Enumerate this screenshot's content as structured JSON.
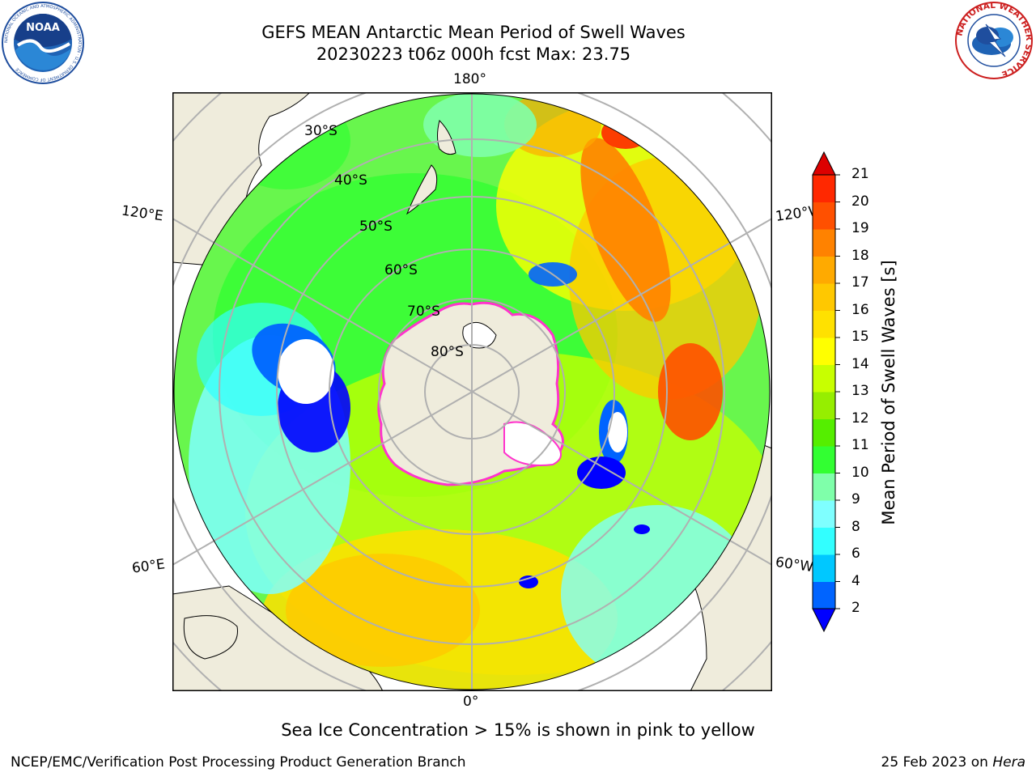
{
  "title": {
    "line1": "GEFS MEAN Antarctic Mean Period of Swell Waves",
    "line2": "20230223 t06z 000h fcst   Max: 23.75"
  },
  "logos": {
    "left": "noaa-logo",
    "right": "national-weather-service-logo",
    "left_text": "NOAA",
    "right_text": "NATIONAL WEATHER SERVICE",
    "left_ring_text": "NATIONAL OCEANIC AND ATMOSPHERIC ADMINISTRATION · U.S. DEPARTMENT OF COMMERCE"
  },
  "map": {
    "projection": "south-polar-stereographic",
    "longitude_labels": {
      "top": "180°",
      "bottom": "0°",
      "upper_left": "120°E",
      "upper_right": "120°W",
      "lower_left": "60°E",
      "lower_right": "60°W"
    },
    "latitude_labels": [
      "30°S",
      "40°S",
      "50°S",
      "60°S",
      "70°S",
      "80°S"
    ],
    "colors": {
      "land": "#efecdc",
      "coast": "#000000",
      "grid": "#b0b0b0",
      "sea_ice_edge": "#ff33cc",
      "ice_interior": "#ffffff"
    }
  },
  "colorbar": {
    "label": "Mean Period of Swell Waves [s]",
    "ticks": [
      "2",
      "4",
      "6",
      "8",
      "9",
      "10",
      "11",
      "12",
      "13",
      "14",
      "15",
      "16",
      "17",
      "18",
      "19",
      "20",
      "21"
    ],
    "colors": [
      "#0000ff",
      "#0064ff",
      "#00c8ff",
      "#32ffff",
      "#7fffff",
      "#7fffaa",
      "#32ff32",
      "#55ee00",
      "#96ee00",
      "#c8ff00",
      "#ffff00",
      "#ffe100",
      "#ffc800",
      "#ffaa00",
      "#ff8200",
      "#ff5000",
      "#ff2800",
      "#dd0000"
    ]
  },
  "notes": {
    "sea_ice": "Sea Ice Concentration > 15% is shown in pink to yellow",
    "footer_left": "NCEP/EMC/Verification Post Processing Product Generation Branch",
    "footer_right_date": "25 Feb 2023 on ",
    "footer_right_host": "Hera"
  }
}
